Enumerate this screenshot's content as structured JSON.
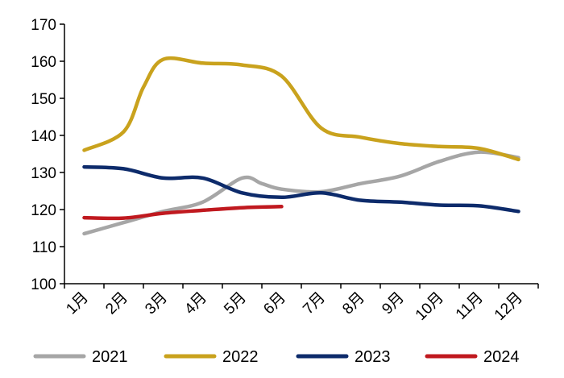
{
  "chart_data": {
    "type": "line",
    "title": "",
    "xlabel": "",
    "ylabel": "",
    "ylim": [
      100,
      170
    ],
    "yticks": [
      "100",
      "110",
      "120",
      "130",
      "140",
      "150",
      "160",
      "170"
    ],
    "categories": [
      "1月",
      "2月",
      "3月",
      "4月",
      "5月",
      "6月",
      "7月",
      "8月",
      "9月",
      "10月",
      "11月",
      "12月"
    ],
    "legend_position": "bottom",
    "grid": false,
    "series": [
      {
        "name": "2021",
        "color": "#A6A6A6",
        "points": [
          [
            0,
            113.5
          ],
          [
            1,
            116.5
          ],
          [
            2,
            119.5
          ],
          [
            3,
            122
          ],
          [
            4,
            128.5
          ],
          [
            4.5,
            127
          ],
          [
            5,
            125.5
          ],
          [
            6,
            124.8
          ],
          [
            7,
            127
          ],
          [
            8,
            129
          ],
          [
            9,
            133
          ],
          [
            10,
            135.5
          ],
          [
            11,
            134
          ]
        ]
      },
      {
        "name": "2022",
        "color": "#C9A21D",
        "points": [
          [
            0,
            136
          ],
          [
            1,
            141
          ],
          [
            1.5,
            153
          ],
          [
            2,
            160.5
          ],
          [
            3,
            159.5
          ],
          [
            4,
            159
          ],
          [
            5,
            156
          ],
          [
            6,
            142
          ],
          [
            7,
            139.5
          ],
          [
            8,
            137.8
          ],
          [
            9,
            137
          ],
          [
            10,
            136.5
          ],
          [
            11,
            133.5
          ]
        ]
      },
      {
        "name": "2023",
        "color": "#0D2B6B",
        "points": [
          [
            0,
            131.5
          ],
          [
            1,
            131
          ],
          [
            2,
            128.5
          ],
          [
            3,
            128.5
          ],
          [
            4,
            124.5
          ],
          [
            5,
            123.3
          ],
          [
            6,
            124.5
          ],
          [
            7,
            122.5
          ],
          [
            8,
            122
          ],
          [
            9,
            121.2
          ],
          [
            10,
            121
          ],
          [
            11,
            119.5
          ]
        ]
      },
      {
        "name": "2024",
        "color": "#C0191F",
        "points": [
          [
            0,
            117.8
          ],
          [
            1,
            117.7
          ],
          [
            2,
            119
          ],
          [
            3,
            119.8
          ],
          [
            4,
            120.5
          ],
          [
            5,
            120.8
          ]
        ]
      }
    ]
  }
}
